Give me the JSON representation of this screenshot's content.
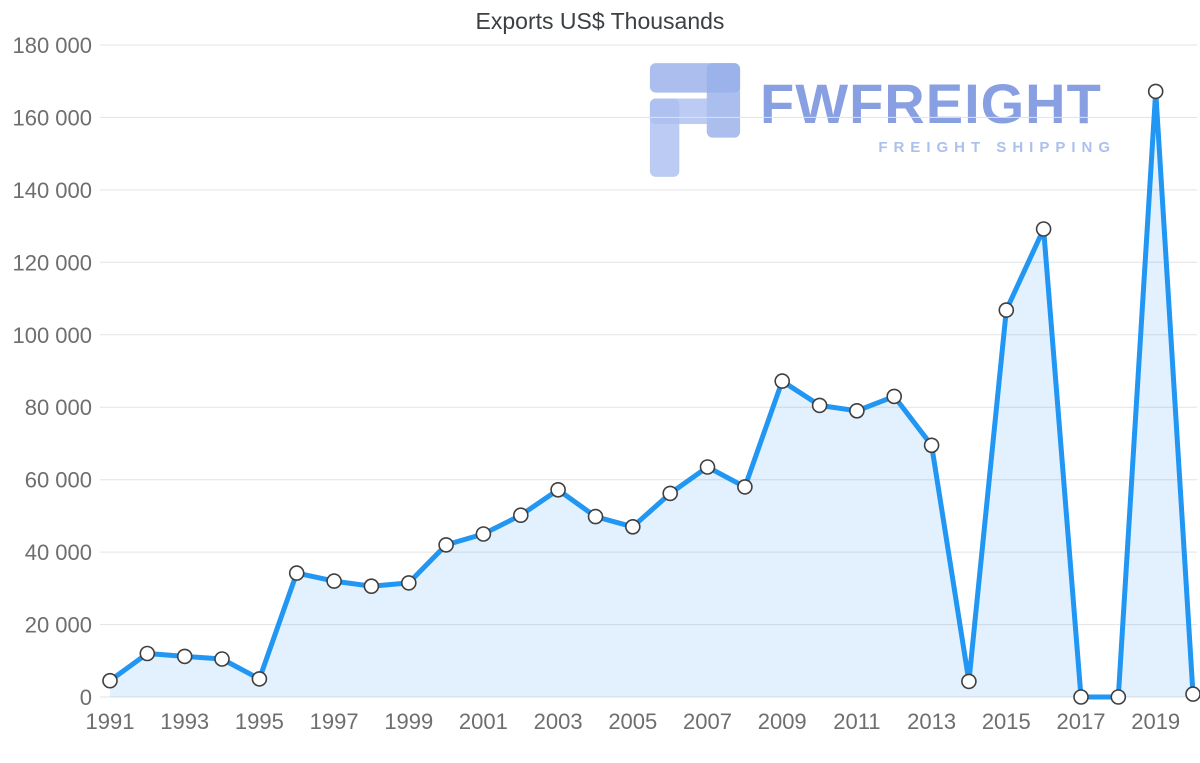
{
  "title": "Exports US$ Thousands",
  "watermark": {
    "brand": "FWFREIGHT",
    "tagline": "FREIGHT SHIPPING",
    "brand_color": "#3e63ce",
    "tagline_color": "#98b1e8",
    "glyph_color": "#8ea9e6"
  },
  "chart_data": {
    "type": "area",
    "title": "Exports US$ Thousands",
    "xlabel": "",
    "ylabel": "",
    "x": [
      1991,
      1992,
      1993,
      1994,
      1995,
      1996,
      1997,
      1998,
      1999,
      2000,
      2001,
      2002,
      2003,
      2004,
      2005,
      2006,
      2007,
      2008,
      2009,
      2010,
      2011,
      2012,
      2013,
      2014,
      2015,
      2016,
      2017,
      2018,
      2019,
      2020
    ],
    "values": [
      4500,
      12000,
      11200,
      10500,
      5000,
      34200,
      32000,
      30600,
      31500,
      42000,
      45000,
      50200,
      57200,
      49800,
      47000,
      56200,
      63500,
      58000,
      87200,
      80500,
      79000,
      83000,
      69500,
      4300,
      106800,
      129200,
      0,
      0,
      167200,
      800
    ],
    "x_tick_labels": [
      "1991",
      "1993",
      "1995",
      "1997",
      "1999",
      "2001",
      "2003",
      "2005",
      "2007",
      "2009",
      "2011",
      "2013",
      "2015",
      "2017",
      "2019"
    ],
    "y_ticks": [
      0,
      20000,
      40000,
      60000,
      80000,
      100000,
      120000,
      140000,
      160000,
      180000
    ],
    "y_tick_labels": [
      "0",
      "20 000",
      "40 000",
      "60 000",
      "80 000",
      "100 000",
      "120 000",
      "140 000",
      "160 000",
      "180 000"
    ],
    "ylim": [
      0,
      180000
    ],
    "grid": "horizontal",
    "legend": "none",
    "line_color": "#2196f3",
    "fill_opacity": 0.13,
    "marker": "circle-white-outlined",
    "marker_border_color": "#3f3f3f",
    "grid_color": "#e3e3e3",
    "axis_text_color": "#6e6e6e",
    "title_color": "#3c4043"
  }
}
